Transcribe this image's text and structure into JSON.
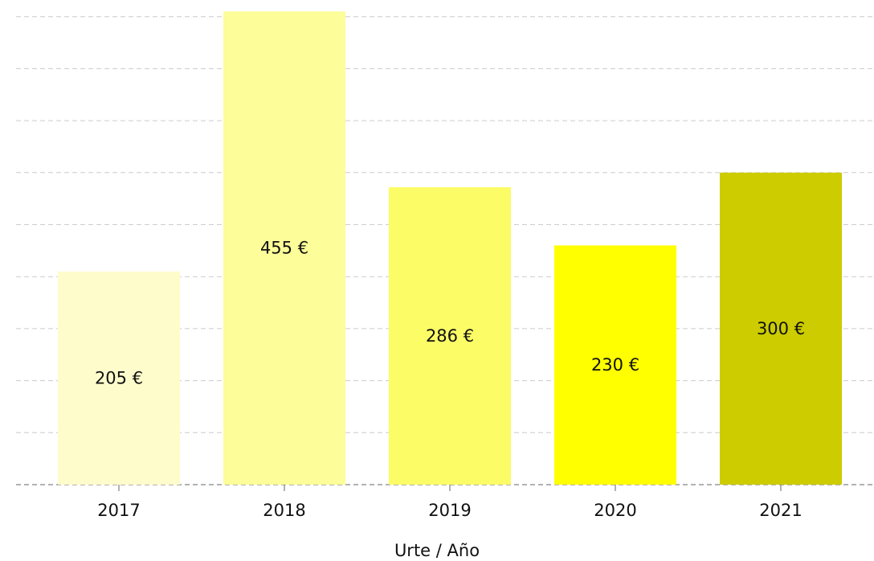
{
  "chart_data": {
    "type": "bar",
    "x_label": "Urte / Año",
    "categories": [
      "2017",
      "2018",
      "2019",
      "2020",
      "2021"
    ],
    "values": [
      205,
      455,
      286,
      230,
      300
    ],
    "value_labels": [
      "205 €",
      "455 €",
      "286 €",
      "230 €",
      "300 €"
    ],
    "colors": [
      "#fffccc",
      "#fdfd99",
      "#fcfc66",
      "#ffff00",
      "#cccc00"
    ],
    "ylim": [
      0,
      466
    ],
    "yticks": [
      0,
      50,
      100,
      150,
      200,
      250,
      300,
      350,
      400,
      450
    ],
    "grid": true
  }
}
